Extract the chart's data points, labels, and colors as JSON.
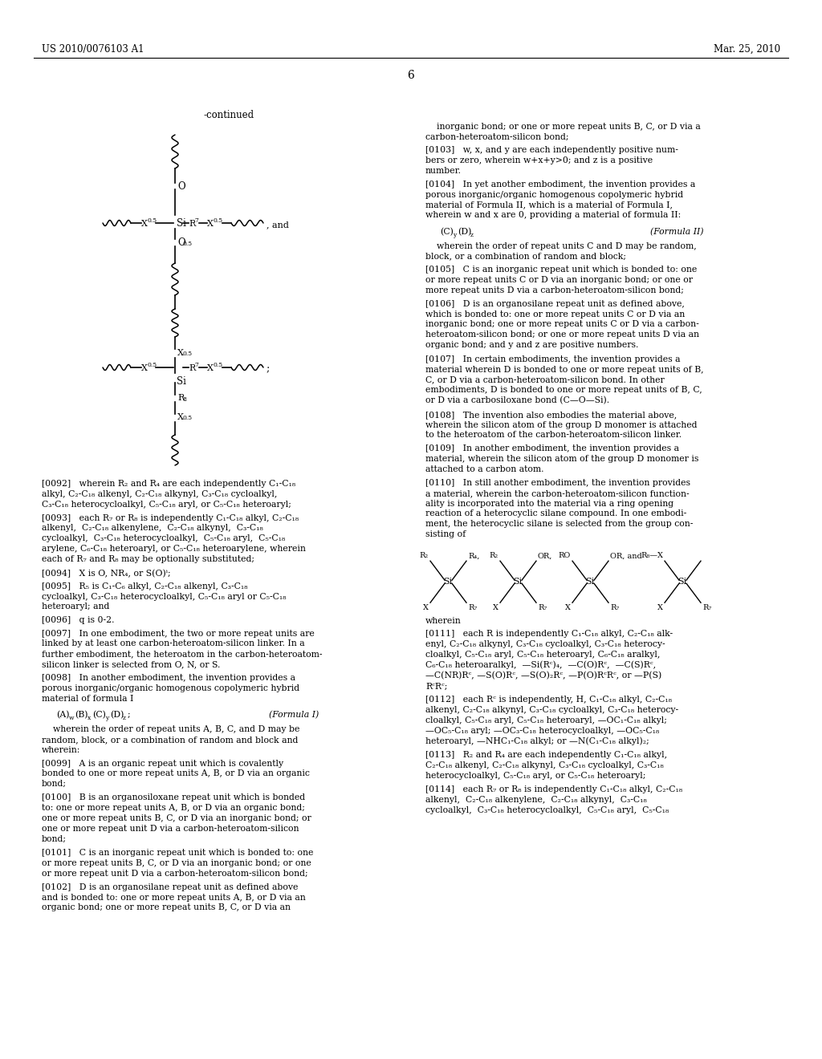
{
  "background_color": "#ffffff",
  "header_left": "US 2010/0076103 A1",
  "header_right": "Mar. 25, 2010",
  "page_number": "6"
}
